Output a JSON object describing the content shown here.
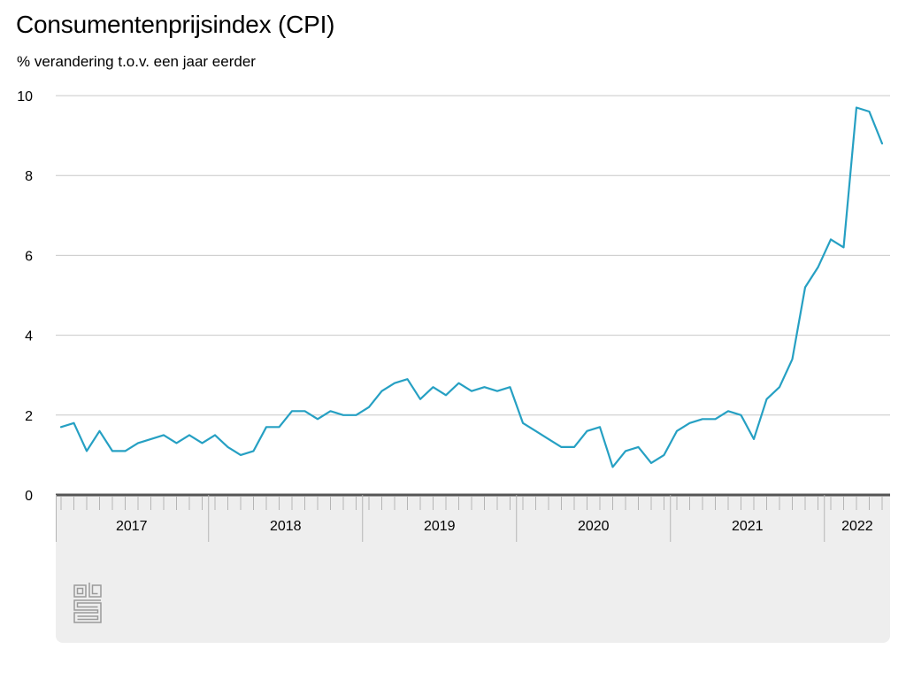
{
  "title": "Consumentenprijsindex (CPI)",
  "subtitle": "% verandering t.o.v. een jaar eerder",
  "logo": "cbs-logo",
  "colors": {
    "line": "#26a0c3",
    "grid": "#c8c8c8",
    "axis_band": "#eeeeee",
    "axis_line": "#555555"
  },
  "chart_data": {
    "type": "line",
    "title": "Consumentenprijsindex (CPI)",
    "subtitle": "% verandering t.o.v. een jaar eerder",
    "xlabel": "",
    "ylabel": "",
    "ylim": [
      0,
      10
    ],
    "yticks": [
      0,
      2,
      4,
      6,
      8,
      10
    ],
    "year_labels": [
      "2017",
      "2018",
      "2019",
      "2020",
      "2021",
      "2022"
    ],
    "x": [
      "2017-01",
      "2017-02",
      "2017-03",
      "2017-04",
      "2017-05",
      "2017-06",
      "2017-07",
      "2017-08",
      "2017-09",
      "2017-10",
      "2017-11",
      "2017-12",
      "2018-01",
      "2018-02",
      "2018-03",
      "2018-04",
      "2018-05",
      "2018-06",
      "2018-07",
      "2018-08",
      "2018-09",
      "2018-10",
      "2018-11",
      "2018-12",
      "2019-01",
      "2019-02",
      "2019-03",
      "2019-04",
      "2019-05",
      "2019-06",
      "2019-07",
      "2019-08",
      "2019-09",
      "2019-10",
      "2019-11",
      "2019-12",
      "2020-01",
      "2020-02",
      "2020-03",
      "2020-04",
      "2020-05",
      "2020-06",
      "2020-07",
      "2020-08",
      "2020-09",
      "2020-10",
      "2020-11",
      "2020-12",
      "2021-01",
      "2021-02",
      "2021-03",
      "2021-04",
      "2021-05",
      "2021-06",
      "2021-07",
      "2021-08",
      "2021-09",
      "2021-10",
      "2021-11",
      "2021-12",
      "2022-01",
      "2022-02",
      "2022-03",
      "2022-04",
      "2022-05"
    ],
    "series": [
      {
        "values": [
          1.7,
          1.8,
          1.1,
          1.6,
          1.1,
          1.1,
          1.3,
          1.4,
          1.5,
          1.3,
          1.5,
          1.3,
          1.5,
          1.2,
          1.0,
          1.1,
          1.7,
          1.7,
          2.1,
          2.1,
          1.9,
          2.1,
          2.0,
          2.0,
          2.2,
          2.6,
          2.8,
          2.9,
          2.4,
          2.7,
          2.5,
          2.8,
          2.6,
          2.7,
          2.6,
          2.7,
          1.8,
          1.6,
          1.4,
          1.2,
          1.2,
          1.6,
          1.7,
          0.7,
          1.1,
          1.2,
          0.8,
          1.0,
          1.6,
          1.8,
          1.9,
          1.9,
          2.1,
          2.0,
          1.4,
          2.4,
          2.7,
          3.4,
          5.2,
          5.7,
          6.4,
          6.2,
          9.7,
          9.6,
          8.8
        ]
      }
    ],
    "grid": true,
    "legend": "none"
  }
}
